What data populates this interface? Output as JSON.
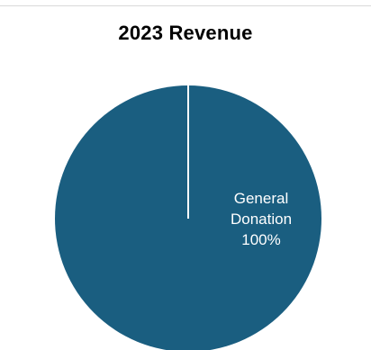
{
  "chart_data": {
    "type": "pie",
    "title": "2023 Revenue",
    "categories": [
      "General Donation"
    ],
    "values": [
      100
    ],
    "labels": [
      {
        "lines": [
          "General",
          "Donation",
          "100%"
        ]
      }
    ],
    "colors": [
      "#1a5e80"
    ],
    "slice_border_color": "#ffffff",
    "start_angle_deg": 0,
    "legend": "none"
  }
}
